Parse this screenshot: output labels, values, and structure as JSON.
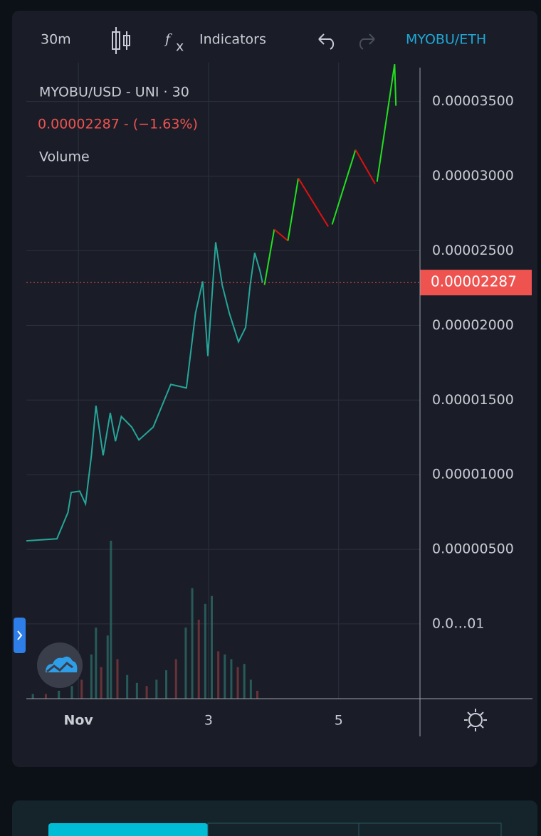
{
  "toolbar": {
    "interval": "30m",
    "indicators": "Indicators",
    "symbol": "MYOBU/ETH"
  },
  "chart_data": {
    "type": "line",
    "title": "MYOBU/USD - UNI · 30",
    "legend_price": "0.00002287 - (−1.63%)",
    "volume_label": "Volume",
    "color": "#26a69a",
    "x": [
      0.2,
      0.67,
      0.84,
      0.89,
      1.02,
      1.11,
      1.2,
      1.27,
      1.38,
      1.49,
      1.57,
      1.66,
      1.82,
      1.93,
      2.15,
      2.42,
      2.66,
      2.8,
      2.91,
      2.99,
      3.11,
      3.21,
      3.32,
      3.46,
      3.57,
      3.64,
      3.71,
      3.79,
      3.83
    ],
    "values": [
      5.57e-06,
      5.71e-06,
      7.48e-06,
      8.81e-06,
      8.9e-06,
      8.05e-06,
      1.129e-05,
      1.462e-05,
      1.129e-05,
      1.414e-05,
      1.224e-05,
      1.39e-05,
      1.319e-05,
      1.233e-05,
      1.319e-05,
      1.605e-05,
      1.581e-05,
      2.081e-05,
      2.295e-05,
      1.795e-05,
      2.557e-05,
      2.271e-05,
      2.081e-05,
      1.89e-05,
      1.986e-05,
      2.271e-05,
      2.486e-05,
      2.367e-05,
      2.287e-05
    ],
    "last_price": {
      "value": 2.287e-05,
      "label": "0.00002287"
    },
    "last_color": "#ef5350",
    "drawings": [
      {
        "color": "#22e01f",
        "x": [
          3.86,
          4.01
        ],
        "values": [
          2.271e-05,
          2.643e-05
        ]
      },
      {
        "color": "#e01010",
        "x": [
          4.01,
          4.22
        ],
        "values": [
          2.643e-05,
          2.567e-05
        ]
      },
      {
        "color": "#22e01f",
        "x": [
          4.22,
          4.38
        ],
        "values": [
          2.567e-05,
          2.986e-05
        ]
      },
      {
        "color": "#e01010",
        "x": [
          4.38,
          4.84
        ],
        "values": [
          2.986e-05,
          2.662e-05
        ]
      },
      {
        "color": "#22e01f",
        "x": [
          4.9,
          5.26
        ],
        "values": [
          2.676e-05,
          3.176e-05
        ]
      },
      {
        "color": "#e01010",
        "x": [
          5.26,
          5.56
        ],
        "values": [
          3.176e-05,
          2.948e-05
        ]
      },
      {
        "color": "#22e01f",
        "x": [
          5.59,
          5.86,
          5.88
        ],
        "values": [
          2.962e-05,
          3.75e-05,
          3.471e-05
        ]
      }
    ],
    "volume": {
      "x": [
        0.3,
        0.5,
        0.7,
        0.9,
        1.05,
        1.2,
        1.27,
        1.35,
        1.45,
        1.5,
        1.6,
        1.75,
        1.9,
        2.05,
        2.2,
        2.35,
        2.5,
        2.65,
        2.75,
        2.85,
        2.95,
        3.05,
        3.15,
        3.25,
        3.35,
        3.45,
        3.55,
        3.65,
        3.75
      ],
      "values": [
        3,
        3,
        5,
        8,
        12,
        28,
        45,
        20,
        40,
        100,
        25,
        15,
        10,
        8,
        12,
        18,
        25,
        45,
        70,
        50,
        60,
        65,
        30,
        28,
        25,
        20,
        22,
        12,
        5
      ],
      "ylim": [
        0,
        100
      ]
    },
    "xlim": [
      0.2,
      6.25
    ],
    "xticks": [
      {
        "value": 1,
        "label": "Nov"
      },
      3,
      5
    ],
    "ylim": [
      -5e-06,
      3.76e-05
    ],
    "yticks": [
      {
        "value": 1e-08,
        "label": "0.0…01"
      },
      {
        "value": 5e-06,
        "label": "0.00000500"
      },
      {
        "value": 1e-05,
        "label": "0.00001000"
      },
      {
        "value": 1.5e-05,
        "label": "0.00001500"
      },
      {
        "value": 2e-05,
        "label": "0.00002000"
      },
      {
        "value": 2.5e-05,
        "label": "0.00002500"
      },
      {
        "value": 3e-05,
        "label": "0.00003000"
      },
      {
        "value": 3.5e-05,
        "label": "0.00003500"
      }
    ],
    "grid": true
  }
}
